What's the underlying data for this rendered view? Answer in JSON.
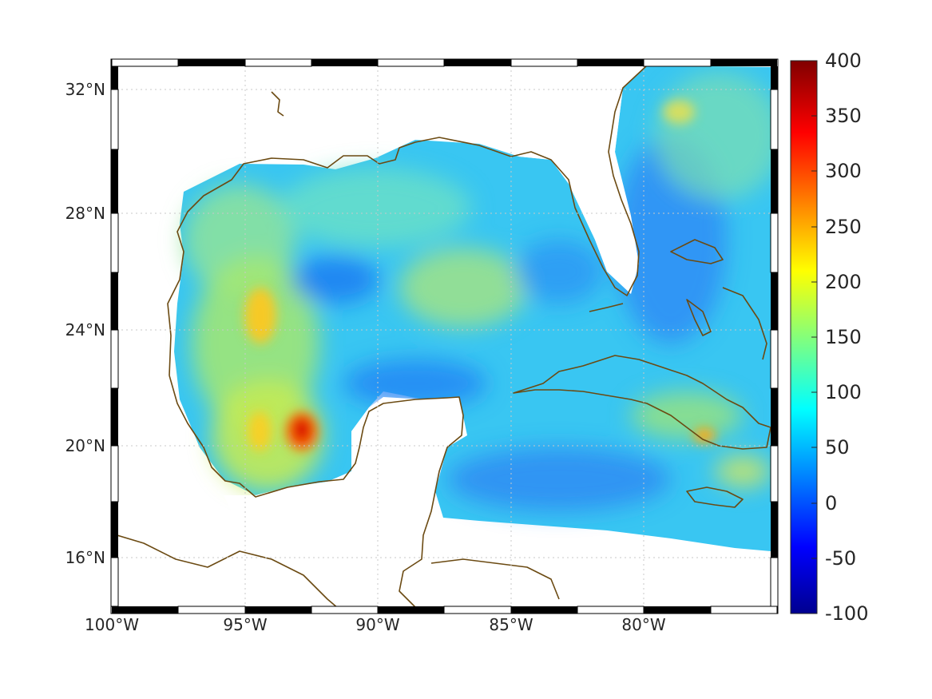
{
  "map": {
    "lon_ticks": [
      "100°W",
      "95°W",
      "90°W",
      "85°W",
      "80°W"
    ],
    "lat_ticks": [
      "32°N",
      "28°N",
      "24°N",
      "20°N",
      "16°N"
    ]
  },
  "colorbar": {
    "ticks": [
      "400",
      "350",
      "300",
      "250",
      "200",
      "150",
      "100",
      "50",
      "0",
      "-50",
      "-100"
    ],
    "min": -100,
    "max": 400,
    "colormap": "jet",
    "colors": [
      "#00008f",
      "#0000ff",
      "#00ffff",
      "#ffff00",
      "#ff0000",
      "#800000"
    ]
  },
  "colors": {
    "coastline": "#6b4a12",
    "land": "#ffffff"
  }
}
